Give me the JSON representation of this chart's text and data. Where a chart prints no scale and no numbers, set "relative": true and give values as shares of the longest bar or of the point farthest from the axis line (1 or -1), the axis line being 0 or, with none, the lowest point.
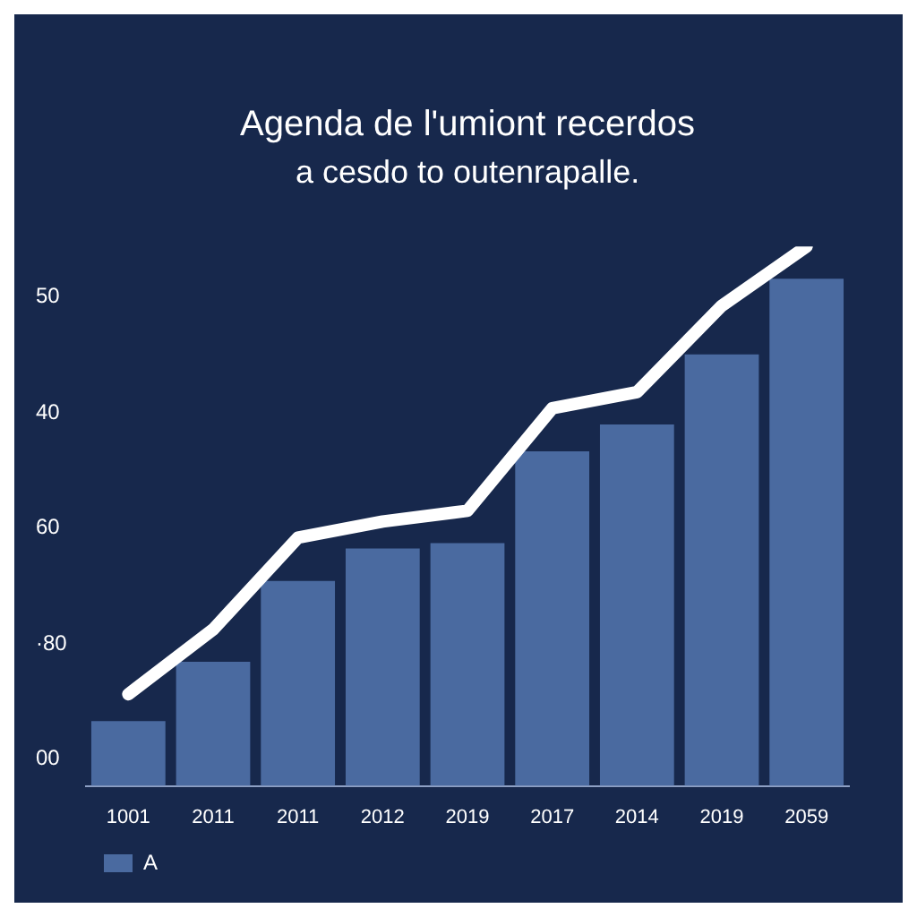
{
  "chart_data": {
    "type": "bar",
    "title": "Agenda de l'umiont recerdos",
    "subtitle": "a cesdo to outenrapalle.",
    "relative": true,
    "categories": [
      "1001",
      "2011",
      "2011",
      "2012",
      "2019",
      "2017",
      "2014",
      "2019",
      "2059"
    ],
    "series": [
      {
        "name": "A",
        "color": "#4a6aa0",
        "values": [
          0.12,
          0.23,
          0.38,
          0.44,
          0.45,
          0.62,
          0.67,
          0.8,
          0.94
        ]
      },
      {
        "type": "line",
        "color": "#ffffff",
        "values": [
          0.17,
          0.29,
          0.46,
          0.49,
          0.51,
          0.7,
          0.73,
          0.89,
          1
        ]
      }
    ],
    "annotations": [
      "50",
      "40",
      "60",
      "·80",
      "00"
    ],
    "legend": "bottom left",
    "marker": "none",
    "line_style": "solid"
  }
}
